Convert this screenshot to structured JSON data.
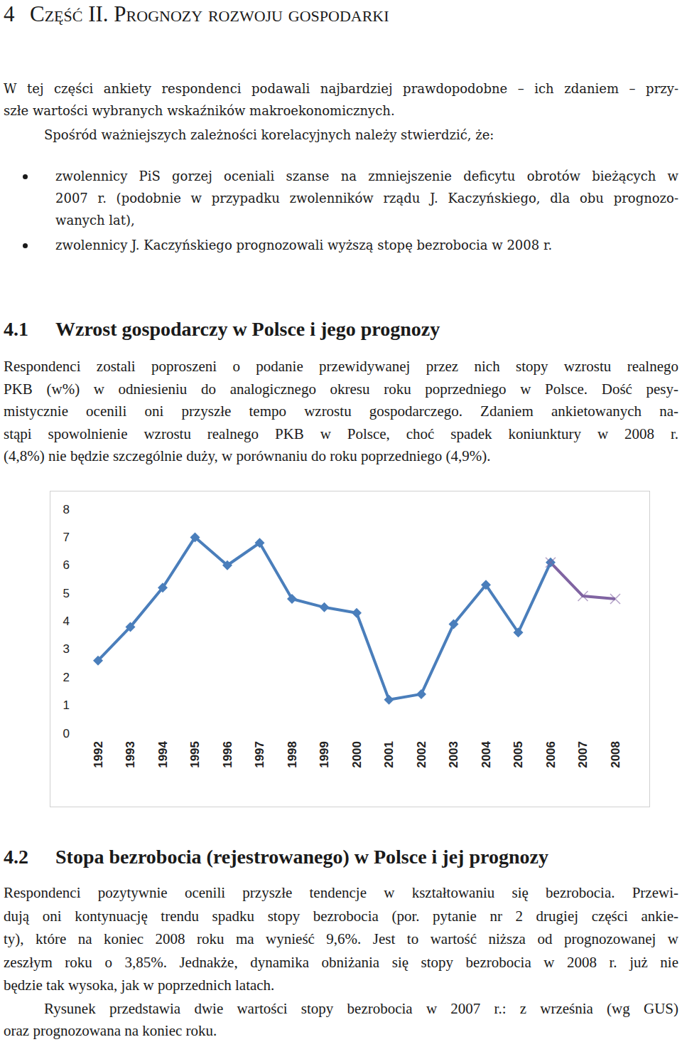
{
  "header": {
    "number": "4",
    "title": "Część II. Prognozy rozwoju gospodarki"
  },
  "intro": {
    "lines": [
      "W tej części ankiety respondenci podawali najbardziej prawdopodobne – ich zdaniem – przy-",
      "szłe wartości wybranych wskaźników makroekonomicznych."
    ],
    "lead": "Spośród ważniejszych zależności korelacyjnych należy stwierdzić, że:"
  },
  "bullets": [
    [
      "zwolennicy PiS gorzej oceniali szanse na zmniejszenie deficytu obrotów bieżących w",
      "2007 r. (podobnie w przypadku zwolenników rządu J. Kaczyńskiego, dla obu prognozo-",
      "wanych lat),"
    ],
    [
      "zwolennicy J. Kaczyńskiego prognozowali wyższą stopę bezrobocia w 2008 r."
    ]
  ],
  "section_1": {
    "number": "4.1",
    "title": "Wzrost gospodarczy w Polsce i jego prognozy",
    "lines": [
      "Respondenci zostali poproszeni o podanie przewidywanej przez nich stopy wzrostu realnego",
      "PKB (w%) w odniesieniu do analogicznego okresu roku poprzedniego w Polsce. Dość pesy-",
      "mistycznie ocenili oni przyszłe tempo wzrostu gospodarczego. Zdaniem ankietowanych na-",
      "stąpi spowolnienie wzrostu realnego PKB w Polsce, choć spadek koniunktury w 2008 r.",
      "(4,8%) nie będzie szczególnie duży, w porównaniu do roku poprzedniego (4,9%)."
    ]
  },
  "chart_data": {
    "type": "line",
    "categories": [
      "1992",
      "1993",
      "1994",
      "1995",
      "1996",
      "1997",
      "1998",
      "1999",
      "2000",
      "2001",
      "2002",
      "2003",
      "2004",
      "2005",
      "2006",
      "2007",
      "2008"
    ],
    "series": [
      {
        "color": "#4a7ebb",
        "marker": "diamond",
        "values": [
          2.6,
          3.8,
          5.2,
          7.0,
          6.0,
          6.8,
          4.8,
          4.5,
          4.3,
          1.2,
          1.4,
          3.9,
          5.3,
          3.6,
          6.1,
          null,
          null
        ]
      },
      {
        "color": "#8064a2",
        "marker": "x",
        "values": [
          null,
          null,
          null,
          null,
          null,
          null,
          null,
          null,
          null,
          null,
          null,
          null,
          null,
          null,
          6.1,
          4.9,
          4.8
        ]
      }
    ],
    "ylim": [
      0,
      8
    ],
    "yticks": [
      0,
      1,
      2,
      3,
      4,
      5,
      6,
      7,
      8
    ],
    "grid": false
  },
  "section_2": {
    "number": "4.2",
    "title": "Stopa bezrobocia (rejestrowanego) w Polsce i jej prognozy",
    "paragraphs": [
      [
        "Respondenci pozytywnie ocenili przyszłe tendencje w kształtowaniu się bezrobocia. Przewi-",
        "dują oni kontynuację trendu spadku stopy bezrobocia (por. pytanie nr 2 drugiej części ankie-",
        "ty), które na koniec 2008 roku ma wynieść 9,6%. Jest to wartość niższa od prognozowanej w",
        "zeszłym roku o 3,85%. Jednakże, dynamika obniżania się stopy bezrobocia w 2008 r. już nie",
        "będzie tak wysoka, jak w poprzednich latach."
      ],
      [
        "Rysunek przedstawia dwie wartości stopy bezrobocia w 2007 r.: z września (wg GUS)",
        "oraz prognozowana na koniec roku."
      ]
    ]
  }
}
